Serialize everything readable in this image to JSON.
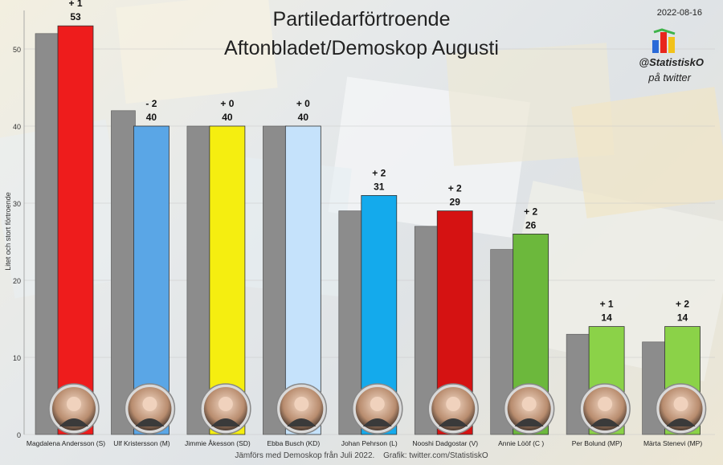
{
  "title_line1": "Partiledarförtroende",
  "title_line2": "Aftonbladet/Demoskop  Augusti",
  "date": "2022-08-16",
  "handle": "@StatistiskO",
  "handle_sub": "på twitter",
  "footer_left": "Jämförs med  Demoskop från Juli 2022.",
  "footer_right": "Grafik: twitter.com/StatistiskO",
  "colors": {
    "previous": "#8c8c8c",
    "background": "#e9e7df"
  },
  "chart_data": {
    "type": "bar",
    "title": "Partiledarförtroende Aftonbladet/Demoskop  Augusti",
    "ylabel": "Litet och stort förtroende",
    "xlabel": "",
    "ylim": [
      0,
      55
    ],
    "yticks": [
      0,
      10,
      20,
      30,
      40,
      50
    ],
    "grid": true,
    "legend": "none",
    "categories": [
      "Magdalena Andersson (S)",
      "Ulf Kristersson (M)",
      "Jimmie Åkesson (SD)",
      "Ebba Busch (KD)",
      "Johan Pehrson (L)",
      "Nooshi Dadgostar (V)",
      "Annie Lööf (C )",
      "Per Bolund (MP)",
      "Märta Stenevi (MP)"
    ],
    "series": [
      {
        "values": [
          52,
          42,
          40,
          40,
          29,
          27,
          24,
          13,
          12
        ],
        "color": "#8c8c8c"
      },
      {
        "values": [
          53,
          40,
          40,
          40,
          31,
          29,
          26,
          14,
          14
        ],
        "colors": [
          "#ee1c1c",
          "#5aa6e6",
          "#f5ee10",
          "#c5e2fb",
          "#14aaec",
          "#d51212",
          "#6cb83c",
          "#8bd248",
          "#8bd248"
        ]
      }
    ],
    "changes": [
      "+ 1",
      "- 2",
      "+ 0",
      "+ 0",
      "+ 2",
      "+ 2",
      "+ 2",
      "+ 1",
      "+ 2"
    ]
  }
}
